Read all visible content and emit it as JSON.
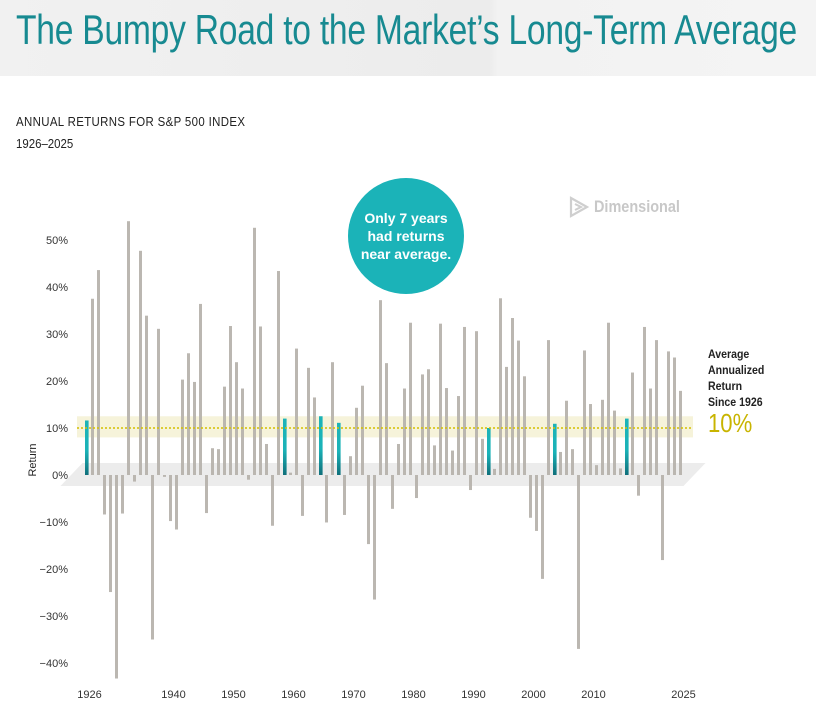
{
  "header": {
    "title": "The Bumpy Road to the Market’s Long-Term Average"
  },
  "subtitle": "ANNUAL RETURNS FOR S&P 500 INDEX",
  "date_range": "1926–2025",
  "logo": {
    "icon": "dimensional-logo-icon",
    "text": "Dimensional"
  },
  "callout": {
    "text": "Only 7 years had returns near average."
  },
  "average": {
    "label_lines": [
      "Average",
      "Annualized",
      "Return",
      "Since 1926"
    ],
    "value_label": "10%",
    "value": 10,
    "band_low": 8,
    "band_high": 12.5
  },
  "colors": {
    "bar": "#b7b3ad",
    "highlight_bar": "#1bb3b8",
    "highlight_bar_dark": "#0f6f7a",
    "band": "#f5f2d6",
    "avg_line": "#d4c000",
    "platform": "#ececec",
    "title": "#178a91"
  },
  "chart_data": {
    "type": "bar",
    "title": "ANNUAL RETURNS FOR S&P 500 INDEX",
    "subtitle": "1926–2025",
    "xlabel": "",
    "ylabel": "Return",
    "ylim": [
      -45,
      55
    ],
    "yticks": [
      50,
      40,
      30,
      20,
      10,
      0,
      -10,
      -20,
      -30,
      -40
    ],
    "ytick_labels": [
      "50%",
      "40%",
      "30%",
      "20%",
      "10%",
      "0%",
      "−10%",
      "−20%",
      "−30%",
      "−40%"
    ],
    "xtick_labels": [
      "1926",
      "1940",
      "1950",
      "1960",
      "1970",
      "1980",
      "1990",
      "2000",
      "2010",
      "2025"
    ],
    "xtick_years": [
      1926,
      1940,
      1950,
      1960,
      1970,
      1980,
      1990,
      2000,
      2010,
      2025
    ],
    "grid": false,
    "highlight_years": [
      1926,
      1959,
      1965,
      1968,
      1993,
      2004,
      2016
    ],
    "average_line": 10,
    "years": [
      1926,
      1927,
      1928,
      1929,
      1930,
      1931,
      1932,
      1933,
      1934,
      1935,
      1936,
      1937,
      1938,
      1939,
      1940,
      1941,
      1942,
      1943,
      1944,
      1945,
      1946,
      1947,
      1948,
      1949,
      1950,
      1951,
      1952,
      1953,
      1954,
      1955,
      1956,
      1957,
      1958,
      1959,
      1960,
      1961,
      1962,
      1963,
      1964,
      1965,
      1966,
      1967,
      1968,
      1969,
      1970,
      1971,
      1972,
      1973,
      1974,
      1975,
      1976,
      1977,
      1978,
      1979,
      1980,
      1981,
      1982,
      1983,
      1984,
      1985,
      1986,
      1987,
      1988,
      1989,
      1990,
      1991,
      1992,
      1993,
      1994,
      1995,
      1996,
      1997,
      1998,
      1999,
      2000,
      2001,
      2002,
      2003,
      2004,
      2005,
      2006,
      2007,
      2008,
      2009,
      2010,
      2011,
      2012,
      2013,
      2014,
      2015,
      2016,
      2017,
      2018,
      2019,
      2020,
      2021,
      2022,
      2023,
      2024,
      2025
    ],
    "values": [
      11.6,
      37.5,
      43.6,
      -8.4,
      -24.9,
      -43.3,
      -8.2,
      54.0,
      -1.4,
      47.7,
      33.9,
      -35.0,
      31.1,
      -0.4,
      -9.8,
      -11.6,
      20.3,
      25.9,
      19.8,
      36.4,
      -8.1,
      5.7,
      5.5,
      18.8,
      31.7,
      24.0,
      18.4,
      -1.0,
      52.6,
      31.6,
      6.6,
      -10.8,
      43.4,
      12.0,
      0.5,
      26.9,
      -8.7,
      22.8,
      16.5,
      12.5,
      -10.1,
      24.0,
      11.1,
      -8.5,
      4.0,
      14.3,
      19.0,
      -14.7,
      -26.5,
      37.2,
      23.8,
      -7.2,
      6.6,
      18.4,
      32.4,
      -4.9,
      21.4,
      22.5,
      6.3,
      32.2,
      18.5,
      5.2,
      16.8,
      31.5,
      -3.2,
      30.6,
      7.7,
      10.0,
      1.3,
      37.6,
      23.0,
      33.4,
      28.6,
      21.0,
      -9.1,
      -11.9,
      -22.1,
      28.7,
      10.9,
      4.9,
      15.8,
      5.5,
      -37.0,
      26.5,
      15.1,
      2.1,
      16.0,
      32.4,
      13.7,
      1.4,
      12.0,
      21.8,
      -4.4,
      31.5,
      18.4,
      28.7,
      -18.1,
      26.3,
      25.0,
      17.9
    ]
  }
}
